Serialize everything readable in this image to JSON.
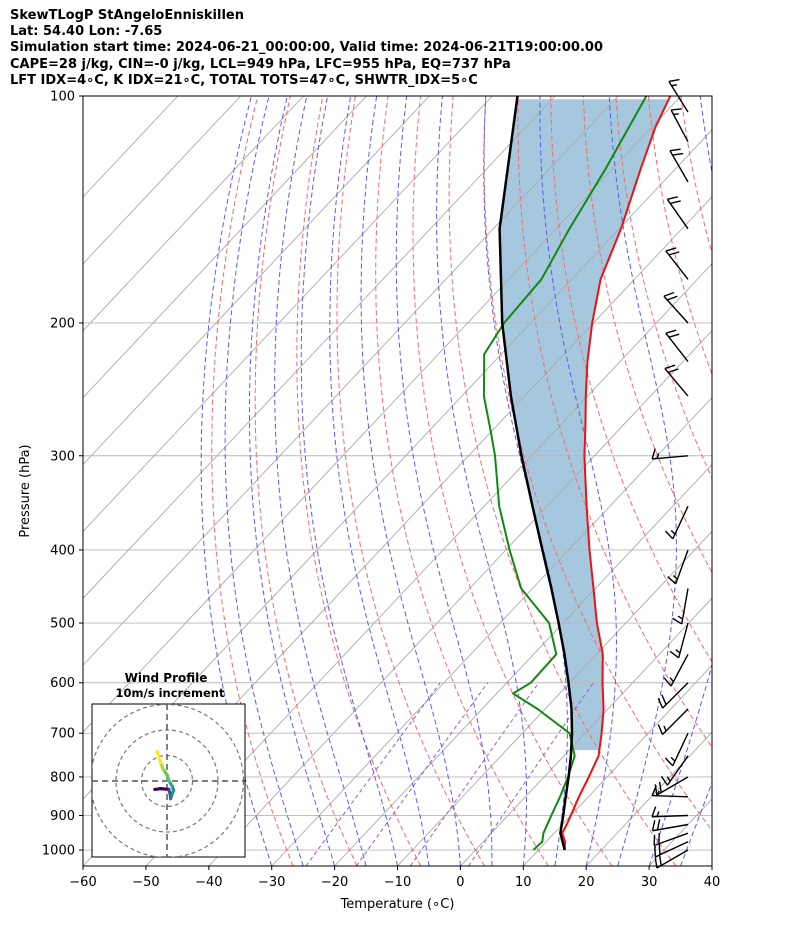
{
  "header": {
    "line1": "SkewTLogP StAngeloEnniskillen",
    "line2": "Lat: 54.40   Lon: -7.65",
    "line3": "Simulation start time: 2024-06-21_00:00:00, Valid time: 2024-06-21T19:00:00.00",
    "line4": "CAPE=28 j/kg, CIN=-0 j/kg, LCL=949 hPa, LFC=955 hPa, EQ=737 hPa",
    "line5": "LFT IDX=4∘C, K IDX=21∘C, TOTAL TOTS=47∘C, SHWTR_IDX=5∘C"
  },
  "colors": {
    "temperature": "#ee1111",
    "dewpoint": "#118811",
    "parcel": "#000000",
    "cape_fill": "#a6c8df",
    "dry_adiabat": "#f26b6b",
    "moist_adiabat": "#5a5af0",
    "mixing_ratio": "#9b59d0",
    "isotherm": "#aaaaaa",
    "grid": "#b8b8b8"
  },
  "chart_data": {
    "type": "skew-t",
    "xlabel": "Temperature (∘C)",
    "ylabel": "Pressure (hPa)",
    "xlim": [
      -60,
      40
    ],
    "ylim": [
      1050,
      100
    ],
    "xticks": [
      -60,
      -50,
      -40,
      -30,
      -20,
      -10,
      0,
      10,
      20,
      30,
      40
    ],
    "yticks": [
      1000,
      900,
      800,
      700,
      600,
      500,
      400,
      300,
      200,
      100
    ],
    "series": [
      {
        "name": "Temperature",
        "points": [
          [
            1000,
            14.2
          ],
          [
            975,
            13.0
          ],
          [
            950,
            11.3
          ],
          [
            925,
            10.7
          ],
          [
            900,
            10.0
          ],
          [
            850,
            8.5
          ],
          [
            800,
            7.1
          ],
          [
            750,
            5.5
          ],
          [
            700,
            2.6
          ],
          [
            650,
            -0.7
          ],
          [
            600,
            -4.8
          ],
          [
            550,
            -9.0
          ],
          [
            500,
            -14.6
          ],
          [
            450,
            -20.3
          ],
          [
            400,
            -26.7
          ],
          [
            350,
            -33.7
          ],
          [
            300,
            -41.6
          ],
          [
            275,
            -45.7
          ],
          [
            250,
            -50.3
          ],
          [
            225,
            -55.2
          ],
          [
            200,
            -60.2
          ],
          [
            175,
            -65.4
          ],
          [
            150,
            -69.7
          ],
          [
            125,
            -75.5
          ],
          [
            110,
            -79.4
          ],
          [
            100,
            -81.7
          ]
        ]
      },
      {
        "name": "Dewpoint",
        "points": [
          [
            1000,
            9.2
          ],
          [
            975,
            9.4
          ],
          [
            950,
            8.3
          ],
          [
            900,
            6.9
          ],
          [
            850,
            5.5
          ],
          [
            800,
            3.8
          ],
          [
            750,
            1.7
          ],
          [
            700,
            -2.5
          ],
          [
            650,
            -11.2
          ],
          [
            620,
            -17.4
          ],
          [
            600,
            -16.2
          ],
          [
            550,
            -16.4
          ],
          [
            500,
            -22.2
          ],
          [
            450,
            -31.8
          ],
          [
            400,
            -39.4
          ],
          [
            350,
            -47.6
          ],
          [
            300,
            -55.8
          ],
          [
            280,
            -59.8
          ],
          [
            250,
            -66.5
          ],
          [
            220,
            -72.7
          ],
          [
            200,
            -74.2
          ],
          [
            175,
            -74.8
          ],
          [
            150,
            -77.9
          ],
          [
            125,
            -81.1
          ],
          [
            100,
            -85.5
          ]
        ]
      },
      {
        "name": "Parcel",
        "points": [
          [
            1000,
            14.2
          ],
          [
            950,
            11.0
          ],
          [
            900,
            8.8
          ],
          [
            850,
            6.4
          ],
          [
            800,
            3.9
          ],
          [
            750,
            1.1
          ],
          [
            700,
            -2.1
          ],
          [
            650,
            -5.8
          ],
          [
            600,
            -10.2
          ],
          [
            550,
            -15.1
          ],
          [
            500,
            -20.7
          ],
          [
            450,
            -27.0
          ],
          [
            400,
            -34.2
          ],
          [
            350,
            -42.3
          ],
          [
            300,
            -51.6
          ],
          [
            250,
            -62.2
          ],
          [
            200,
            -74.5
          ],
          [
            150,
            -89.0
          ],
          [
            100,
            -106.0
          ]
        ]
      }
    ],
    "cape_shading": "between Parcel and Temperature (parcel colder)",
    "wind_barbs": [
      {
        "p": 1000,
        "dir": 240,
        "kt": 18
      },
      {
        "p": 975,
        "dir": 245,
        "kt": 20
      },
      {
        "p": 950,
        "dir": 250,
        "kt": 22
      },
      {
        "p": 925,
        "dir": 260,
        "kt": 18
      },
      {
        "p": 900,
        "dir": 268,
        "kt": 16
      },
      {
        "p": 850,
        "dir": 272,
        "kt": 16
      },
      {
        "p": 800,
        "dir": 240,
        "kt": 18
      },
      {
        "p": 750,
        "dir": 215,
        "kt": 16
      },
      {
        "p": 700,
        "dir": 205,
        "kt": 16
      },
      {
        "p": 650,
        "dir": 225,
        "kt": 16
      },
      {
        "p": 600,
        "dir": 225,
        "kt": 18
      },
      {
        "p": 550,
        "dir": 208,
        "kt": 16
      },
      {
        "p": 500,
        "dir": 195,
        "kt": 15
      },
      {
        "p": 450,
        "dir": 190,
        "kt": 14
      },
      {
        "p": 400,
        "dir": 200,
        "kt": 14
      },
      {
        "p": 350,
        "dir": 205,
        "kt": 14
      },
      {
        "p": 300,
        "dir": 265,
        "kt": 14
      },
      {
        "p": 250,
        "dir": 320,
        "kt": 18
      },
      {
        "p": 225,
        "dir": 322,
        "kt": 20
      },
      {
        "p": 200,
        "dir": 318,
        "kt": 18
      },
      {
        "p": 175,
        "dir": 322,
        "kt": 18
      },
      {
        "p": 150,
        "dir": 325,
        "kt": 18
      },
      {
        "p": 130,
        "dir": 330,
        "kt": 18
      },
      {
        "p": 115,
        "dir": 332,
        "kt": 16
      },
      {
        "p": 105,
        "dir": 328,
        "kt": 16
      }
    ],
    "hodograph": {
      "title": "Wind Profile",
      "subtitle": "10m/s increment",
      "rings_ms": [
        10,
        20,
        30
      ],
      "points": [
        [
          -4.8,
          -3.3
        ],
        [
          -2.6,
          -3.0
        ],
        [
          0.7,
          -3.3
        ],
        [
          0.9,
          -3.9
        ],
        [
          1.3,
          -5.4
        ],
        [
          1.4,
          -6.9
        ],
        [
          2.1,
          -4.8
        ],
        [
          2.6,
          -3.7
        ],
        [
          2.1,
          -2.1
        ],
        [
          0.8,
          0.0
        ],
        [
          0.2,
          2.1
        ],
        [
          -1.5,
          4.6
        ],
        [
          -2.5,
          7.2
        ],
        [
          -3.8,
          11.6
        ]
      ]
    }
  }
}
